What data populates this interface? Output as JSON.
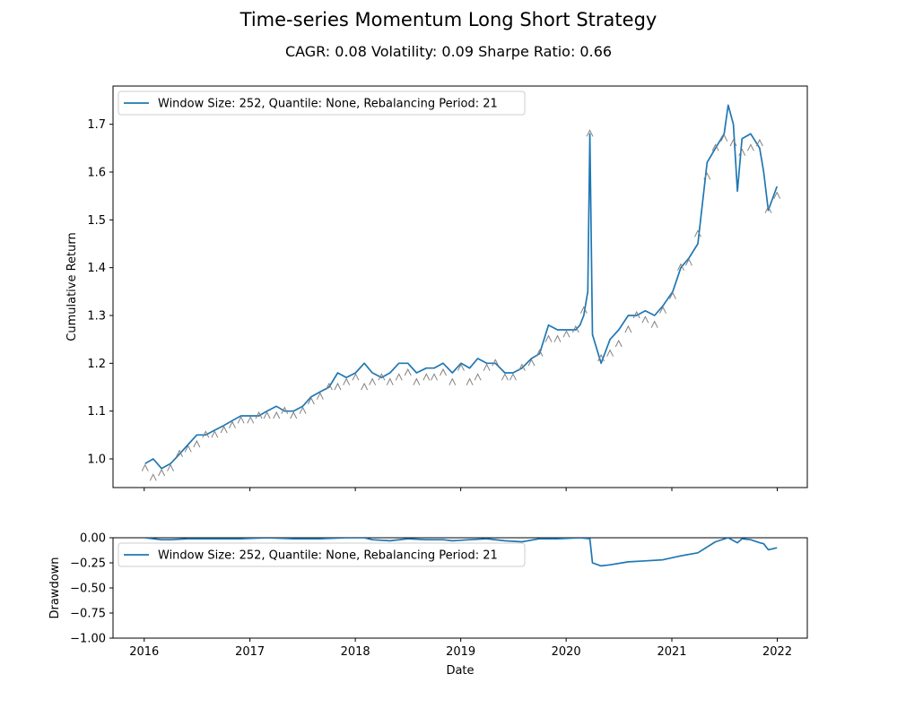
{
  "title": "Time-series Momentum Long Short Strategy",
  "subtitle": "CAGR: 0.08 Volatility: 0.09 Sharpe Ratio: 0.66",
  "colors": {
    "series": "#1f77b4",
    "marker": "#808080",
    "axis": "#000000",
    "legend_border": "#cccccc"
  },
  "chart_data": [
    {
      "type": "line",
      "ylabel": "Cumulative Return",
      "xlabel": "",
      "legend": {
        "placement": "upper-left",
        "entries": [
          "Window Size: 252, Quantile: None, Rebalancing Period: 21"
        ]
      },
      "grid": false,
      "xlim": [
        "2015-09-15",
        "2022-04-15"
      ],
      "ylim": [
        0.94,
        1.78
      ],
      "x_ticks": [
        "2016-01-01",
        "2017-01-01",
        "2018-01-01",
        "2019-01-01",
        "2020-01-01",
        "2021-01-01",
        "2022-01-01"
      ],
      "x_tick_labels": [
        "",
        "",
        "",
        "",
        "",
        "",
        ""
      ],
      "y_ticks": [
        1.0,
        1.1,
        1.2,
        1.3,
        1.4,
        1.5,
        1.6,
        1.7
      ],
      "y_tick_labels": [
        "1.0",
        "1.1",
        "1.2",
        "1.3",
        "1.4",
        "1.5",
        "1.6",
        "1.7"
      ],
      "series": [
        {
          "name": "Window Size: 252, Quantile: None, Rebalancing Period: 21",
          "x": [
            "2016-01-04",
            "2016-02-01",
            "2016-03-01",
            "2016-04-01",
            "2016-05-02",
            "2016-06-01",
            "2016-07-01",
            "2016-08-01",
            "2016-09-01",
            "2016-10-03",
            "2016-11-01",
            "2016-12-01",
            "2017-01-03",
            "2017-02-01",
            "2017-03-01",
            "2017-04-03",
            "2017-05-01",
            "2017-06-01",
            "2017-07-03",
            "2017-08-01",
            "2017-09-01",
            "2017-10-02",
            "2017-11-01",
            "2017-12-01",
            "2018-01-02",
            "2018-02-01",
            "2018-03-01",
            "2018-04-02",
            "2018-05-01",
            "2018-06-01",
            "2018-07-02",
            "2018-08-01",
            "2018-09-04",
            "2018-10-01",
            "2018-11-01",
            "2018-12-03",
            "2019-01-02",
            "2019-02-01",
            "2019-03-01",
            "2019-04-01",
            "2019-05-01",
            "2019-06-03",
            "2019-07-01",
            "2019-08-01",
            "2019-09-03",
            "2019-10-01",
            "2019-11-01",
            "2019-12-02",
            "2020-01-02",
            "2020-02-03",
            "2020-02-18",
            "2020-03-02",
            "2020-03-16",
            "2020-03-23",
            "2020-04-01",
            "2020-05-01",
            "2020-06-01",
            "2020-07-01",
            "2020-08-03",
            "2020-09-01",
            "2020-10-01",
            "2020-11-02",
            "2020-12-01",
            "2021-01-04",
            "2021-02-01",
            "2021-03-01",
            "2021-04-01",
            "2021-05-03",
            "2021-06-01",
            "2021-07-01",
            "2021-07-15",
            "2021-08-02",
            "2021-08-16",
            "2021-09-01",
            "2021-10-01",
            "2021-11-01",
            "2021-11-15",
            "2021-12-01",
            "2021-12-31"
          ],
          "y": [
            0.99,
            1.0,
            0.98,
            0.99,
            1.01,
            1.03,
            1.05,
            1.05,
            1.06,
            1.07,
            1.08,
            1.09,
            1.09,
            1.09,
            1.1,
            1.11,
            1.1,
            1.1,
            1.11,
            1.13,
            1.14,
            1.15,
            1.18,
            1.17,
            1.18,
            1.2,
            1.18,
            1.17,
            1.18,
            1.2,
            1.2,
            1.18,
            1.19,
            1.19,
            1.2,
            1.18,
            1.2,
            1.19,
            1.21,
            1.2,
            1.2,
            1.18,
            1.18,
            1.19,
            1.21,
            1.22,
            1.28,
            1.27,
            1.27,
            1.27,
            1.28,
            1.3,
            1.35,
            1.68,
            1.26,
            1.2,
            1.25,
            1.27,
            1.3,
            1.3,
            1.31,
            1.3,
            1.32,
            1.35,
            1.4,
            1.42,
            1.45,
            1.62,
            1.65,
            1.68,
            1.74,
            1.7,
            1.56,
            1.67,
            1.68,
            1.65,
            1.6,
            1.52,
            1.57
          ]
        }
      ],
      "markers": {
        "symbol": "^",
        "x": [
          "2016-01-04",
          "2016-02-01",
          "2016-03-01",
          "2016-04-01",
          "2016-05-02",
          "2016-06-01",
          "2016-07-01",
          "2016-08-01",
          "2016-09-01",
          "2016-10-03",
          "2016-11-01",
          "2016-12-01",
          "2017-01-03",
          "2017-02-01",
          "2017-03-01",
          "2017-04-03",
          "2017-05-01",
          "2017-06-01",
          "2017-07-03",
          "2017-08-01",
          "2017-09-01",
          "2017-10-02",
          "2017-11-01",
          "2017-12-01",
          "2018-01-02",
          "2018-02-01",
          "2018-03-01",
          "2018-04-02",
          "2018-05-01",
          "2018-06-01",
          "2018-07-02",
          "2018-08-01",
          "2018-09-04",
          "2018-10-01",
          "2018-11-01",
          "2018-12-03",
          "2019-01-02",
          "2019-02-01",
          "2019-03-01",
          "2019-04-01",
          "2019-05-01",
          "2019-06-03",
          "2019-07-01",
          "2019-08-01",
          "2019-09-03",
          "2019-10-01",
          "2019-11-01",
          "2019-12-02",
          "2020-01-02",
          "2020-02-03",
          "2020-03-02",
          "2020-03-23",
          "2020-05-01",
          "2020-06-01",
          "2020-07-01",
          "2020-08-03",
          "2020-09-01",
          "2020-10-01",
          "2020-11-02",
          "2020-12-01",
          "2021-01-04",
          "2021-02-01",
          "2021-03-01",
          "2021-04-01",
          "2021-05-03",
          "2021-06-01",
          "2021-07-01",
          "2021-08-02",
          "2021-09-01",
          "2021-10-01",
          "2021-11-01",
          "2021-12-01",
          "2021-12-31"
        ],
        "y": [
          0.98,
          0.96,
          0.97,
          0.98,
          1.01,
          1.02,
          1.03,
          1.05,
          1.05,
          1.06,
          1.07,
          1.08,
          1.08,
          1.09,
          1.09,
          1.09,
          1.1,
          1.09,
          1.1,
          1.12,
          1.13,
          1.15,
          1.15,
          1.16,
          1.17,
          1.15,
          1.16,
          1.17,
          1.16,
          1.17,
          1.18,
          1.16,
          1.17,
          1.17,
          1.18,
          1.16,
          1.19,
          1.16,
          1.17,
          1.19,
          1.2,
          1.17,
          1.17,
          1.19,
          1.2,
          1.22,
          1.25,
          1.25,
          1.26,
          1.27,
          1.31,
          1.68,
          1.21,
          1.22,
          1.24,
          1.27,
          1.3,
          1.29,
          1.28,
          1.31,
          1.34,
          1.4,
          1.41,
          1.47,
          1.59,
          1.65,
          1.67,
          1.66,
          1.64,
          1.65,
          1.66,
          1.52,
          1.55
        ]
      }
    },
    {
      "type": "line",
      "ylabel": "Drawdown",
      "xlabel": "Date",
      "legend": {
        "placement": "upper-left",
        "entries": [
          "Window Size: 252, Quantile: None, Rebalancing Period: 21"
        ]
      },
      "grid": false,
      "xlim": [
        "2015-09-15",
        "2022-04-15"
      ],
      "ylim": [
        -1.0,
        0.0
      ],
      "x_ticks": [
        "2016-01-01",
        "2017-01-01",
        "2018-01-01",
        "2019-01-01",
        "2020-01-01",
        "2021-01-01",
        "2022-01-01"
      ],
      "x_tick_labels": [
        "2016",
        "2017",
        "2018",
        "2019",
        "2020",
        "2021",
        "2022"
      ],
      "y_ticks": [
        0.0,
        -0.25,
        -0.5,
        -0.75,
        -1.0
      ],
      "y_tick_labels": [
        "0.00",
        "−0.25",
        "−0.50",
        "−0.75",
        "−1.00"
      ],
      "series": [
        {
          "name": "Window Size: 252, Quantile: None, Rebalancing Period: 21",
          "x": [
            "2016-01-04",
            "2016-02-01",
            "2016-03-01",
            "2016-04-01",
            "2016-06-01",
            "2016-09-01",
            "2016-12-01",
            "2017-03-01",
            "2017-06-01",
            "2017-09-01",
            "2017-12-01",
            "2018-02-01",
            "2018-03-01",
            "2018-05-01",
            "2018-07-02",
            "2018-09-04",
            "2018-11-01",
            "2018-12-03",
            "2019-02-01",
            "2019-04-01",
            "2019-06-03",
            "2019-08-01",
            "2019-10-01",
            "2019-12-02",
            "2020-02-18",
            "2020-03-23",
            "2020-04-01",
            "2020-05-01",
            "2020-06-01",
            "2020-08-03",
            "2020-10-01",
            "2020-12-01",
            "2021-02-01",
            "2021-04-01",
            "2021-06-01",
            "2021-07-15",
            "2021-08-16",
            "2021-09-01",
            "2021-10-01",
            "2021-11-01",
            "2021-11-15",
            "2021-12-01",
            "2021-12-31"
          ],
          "y": [
            0.0,
            -0.01,
            -0.02,
            -0.02,
            -0.01,
            -0.01,
            -0.01,
            0.0,
            -0.01,
            -0.01,
            0.0,
            0.0,
            -0.02,
            -0.03,
            -0.01,
            -0.02,
            -0.02,
            -0.03,
            -0.02,
            -0.01,
            -0.03,
            -0.04,
            -0.01,
            -0.01,
            0.0,
            -0.01,
            -0.25,
            -0.28,
            -0.27,
            -0.24,
            -0.23,
            -0.22,
            -0.18,
            -0.15,
            -0.04,
            0.0,
            -0.05,
            -0.01,
            -0.02,
            -0.05,
            -0.06,
            -0.12,
            -0.1
          ]
        }
      ]
    }
  ]
}
